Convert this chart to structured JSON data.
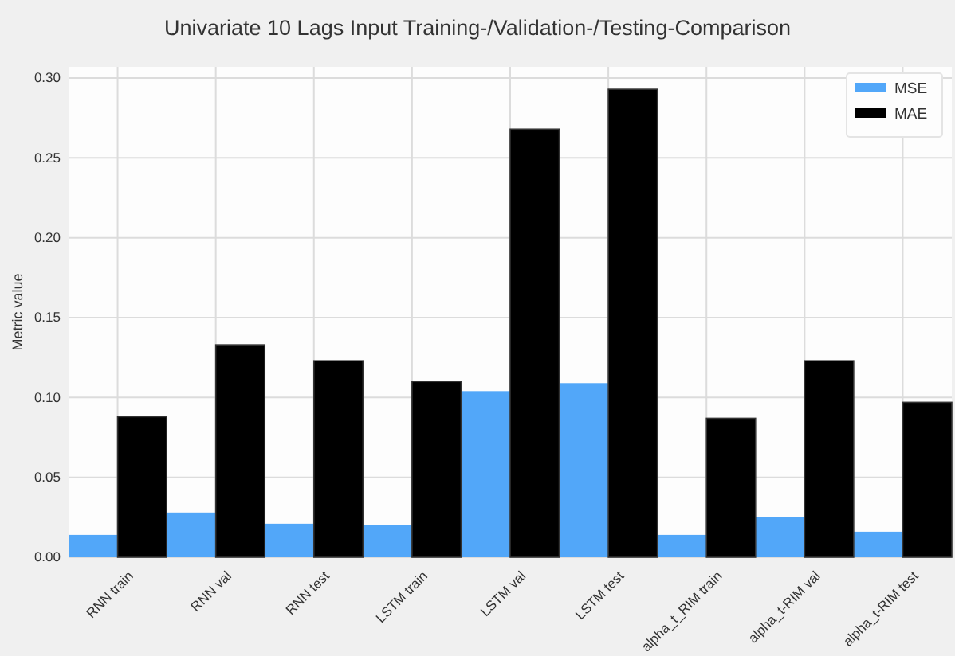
{
  "chart_data": {
    "type": "bar",
    "title": "Univariate 10 Lags Input Training-/Validation-/Testing-Comparison",
    "ylabel": "Metric value",
    "categories": [
      "RNN train",
      "RNN val",
      "RNN test",
      "LSTM train",
      "LSTM val",
      "LSTM test",
      "alpha_t_RIM train",
      "alpha_t-RIM val",
      "alpha_t-RIM test"
    ],
    "series": [
      {
        "name": "MSE",
        "color": "#52a7f9",
        "values": [
          0.014,
          0.028,
          0.021,
          0.02,
          0.104,
          0.109,
          0.014,
          0.025,
          0.016
        ]
      },
      {
        "name": "MAE",
        "color": "#000000",
        "values": [
          0.088,
          0.133,
          0.123,
          0.11,
          0.268,
          0.293,
          0.087,
          0.123,
          0.097
        ]
      }
    ],
    "ylim": [
      0,
      0.307
    ],
    "yticks": [
      {
        "value": 0,
        "label": "0.00"
      },
      {
        "value": 0.05,
        "label": "0.05"
      },
      {
        "value": 0.1,
        "label": "0.10"
      },
      {
        "value": 0.15,
        "label": "0.15"
      },
      {
        "value": 0.2,
        "label": "0.20"
      },
      {
        "value": 0.25,
        "label": "0.25"
      },
      {
        "value": 0.3,
        "label": "0.30"
      }
    ],
    "grid": true,
    "legend": "top right"
  }
}
